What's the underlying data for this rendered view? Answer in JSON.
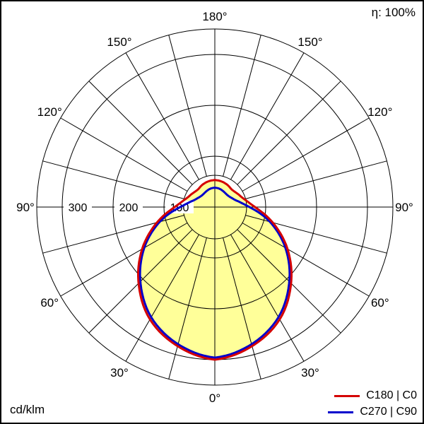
{
  "eta_label": "η: 100%",
  "unit_label": "cd/klm",
  "legend": [
    {
      "label": "C180 | C0",
      "color": "#d40000"
    },
    {
      "label": "C270 | C90",
      "color": "#0000cc"
    }
  ],
  "chart_data": {
    "type": "polar",
    "unit": "cd/klm",
    "efficiency": "η: 100%",
    "angle_labels": [
      "0°",
      "30°",
      "60°",
      "90°",
      "120°",
      "150°",
      "180°"
    ],
    "angle_label_step_deg": 30,
    "grid": {
      "spoke_step_deg": 15,
      "circle_step": 100
    },
    "radial_axis": {
      "ticks": [
        100,
        200,
        300
      ],
      "max": 350
    },
    "fill_color": "#ffff99",
    "series": [
      {
        "name": "C180 | C0",
        "plane": "C0-C180",
        "color": "#d40000",
        "symmetric": true,
        "gamma_deg": [
          0,
          15,
          30,
          45,
          60,
          75,
          90,
          105,
          120,
          135,
          150,
          165,
          180
        ],
        "values_cd_per_klm": [
          300,
          283,
          255,
          212,
          165,
          118,
          79,
          60,
          52,
          48,
          50,
          52,
          53
        ]
      },
      {
        "name": "C270 | C90",
        "plane": "C90-C270",
        "color": "#0000cc",
        "symmetric": true,
        "gamma_deg": [
          0,
          15,
          30,
          45,
          60,
          75,
          90,
          105,
          120,
          135,
          150,
          165,
          180
        ],
        "values_cd_per_klm": [
          296,
          279,
          250,
          207,
          160,
          112,
          68,
          46,
          37,
          34,
          35,
          37,
          38
        ]
      }
    ]
  }
}
